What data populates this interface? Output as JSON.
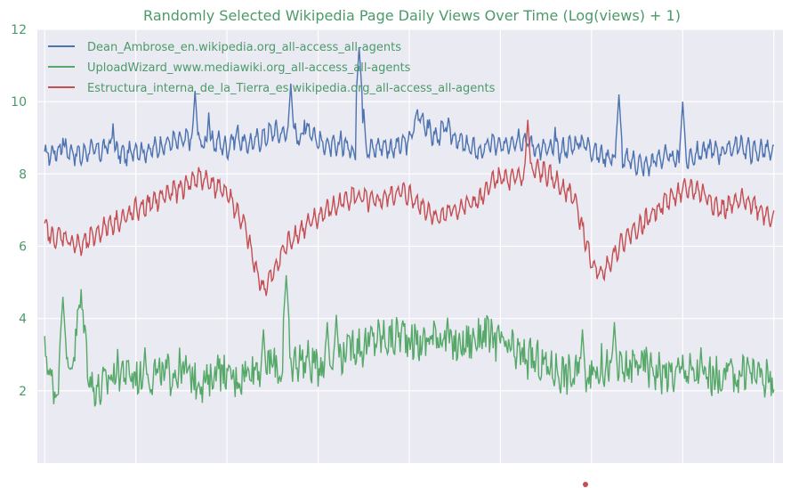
{
  "chart_data": {
    "type": "line",
    "title": "Randomly Selected Wikipedia Page Daily Views Over Time (Log(views) + 1)",
    "xlabel": "",
    "ylabel": "",
    "ylim": [
      0,
      12
    ],
    "xlim": [
      -8,
      810
    ],
    "yticks": [
      "2",
      "4",
      "6",
      "8",
      "10",
      "12"
    ],
    "grid": true,
    "legend_position": "top-left",
    "background": "#eaeaf2",
    "series": [
      {
        "name": "Dean_Ambrose_en.wikipedia.org_all-access_all-agents",
        "color": "#4c72b0",
        "x_step": 10,
        "values": [
          8.5,
          8.6,
          8.7,
          8.6,
          8.5,
          8.7,
          8.6,
          8.8,
          8.6,
          8.5,
          8.7,
          8.6,
          8.7,
          8.8,
          8.9,
          8.9,
          9.0,
          8.9,
          8.8,
          8.9,
          8.7,
          9.1,
          8.8,
          8.9,
          9.0,
          9.2,
          9.1,
          9.2,
          9.0,
          9.3,
          8.9,
          8.8,
          8.7,
          8.8,
          8.6,
          8.6,
          8.7,
          8.8,
          8.7,
          8.8,
          8.9,
          9.7,
          9.2,
          9.0,
          9.3,
          9.0,
          8.8,
          8.7,
          8.6,
          8.9,
          8.7,
          8.9,
          9.0,
          8.9,
          8.7,
          8.7,
          8.6,
          8.7,
          8.8,
          8.9,
          8.7,
          8.5,
          8.5,
          8.3,
          8.4,
          8.3,
          8.2,
          8.4,
          8.5,
          8.4,
          8.3,
          8.5,
          8.6,
          8.7,
          8.6,
          8.7,
          8.8,
          8.7,
          8.6,
          8.7,
          8.5,
          8.4,
          8.5,
          8.4,
          8.3,
          8.2,
          8.4,
          8.3,
          8.2,
          8.3,
          8.4,
          8.5,
          8.4,
          8.3,
          8.2,
          8.1,
          8.0,
          8.1,
          8.0,
          7.9,
          8.0,
          8.1,
          8.2,
          8.1,
          8.0,
          8.1,
          8.0,
          8.3,
          8.5,
          8.2,
          8.1,
          8.0,
          8.1,
          8.3,
          8.1,
          7.9,
          7.9,
          8.0,
          8.1,
          8.2,
          8.3,
          8.4,
          8.1,
          7.9,
          8.0,
          8.0,
          8.1,
          8.5,
          8.6,
          8.0,
          7.8,
          8.0,
          8.0,
          8.1,
          8.0,
          7.8,
          8.1,
          8.1,
          8.1,
          8.1,
          8.1,
          8.1,
          8.1,
          8.1,
          8.1,
          8.1,
          8.1,
          8.1,
          8.1,
          8.1,
          8.1,
          8.1,
          8.1,
          8.1,
          8.1,
          8.1,
          8.1,
          8.1,
          8.1,
          8.1,
          8.1,
          8.1,
          8.1,
          8.1,
          8.1,
          8.1,
          8.1,
          8.1,
          8.1,
          8.1,
          8.1,
          8.1,
          8.1,
          8.1,
          8.1,
          8.1,
          8.1,
          8.1,
          8.1,
          8.1,
          8.1,
          8.1
        ],
        "peaks": [
          [
            20,
            9.0
          ],
          [
            75,
            9.4
          ],
          [
            165,
            10.3
          ],
          [
            180,
            9.7
          ],
          [
            270,
            10.5
          ],
          [
            285,
            9.5
          ],
          [
            325,
            9.2
          ],
          [
            345,
            11.5
          ],
          [
            350,
            9.8
          ],
          [
            420,
            9.5
          ],
          [
            440,
            9.1
          ],
          [
            520,
            8.5
          ],
          [
            560,
            9.3
          ],
          [
            630,
            10.2
          ],
          [
            700,
            10.0
          ]
        ]
      },
      {
        "name": "UploadWizard_www.mediawiki.org_all-access_all-agents",
        "color": "#55a868",
        "x_step": 10,
        "values": [
          3.1,
          2.0,
          2.5,
          2.7,
          4.6,
          2.2,
          2.0,
          2.3,
          2.6,
          2.5,
          2.4,
          2.3,
          2.5,
          2.4,
          2.5,
          2.6,
          2.4,
          2.3,
          2.2,
          2.6,
          2.4,
          2.3,
          2.5,
          2.7,
          2.6,
          2.8,
          2.5,
          2.7,
          2.9,
          2.8,
          2.7,
          3.0,
          2.9,
          3.1,
          3.3,
          3.2,
          3.4,
          3.5,
          3.4,
          3.6,
          3.5,
          3.3,
          3.4,
          3.6,
          3.5,
          3.2,
          3.3,
          3.4,
          3.6,
          3.5,
          3.3,
          3.1,
          3.0,
          2.9,
          2.8,
          2.7,
          2.6,
          2.5,
          2.4,
          2.6,
          2.5,
          2.7,
          2.6,
          2.5,
          2.6,
          2.8,
          2.7,
          2.6,
          2.5,
          2.4,
          2.6,
          2.5,
          2.3,
          2.4,
          2.3,
          2.5,
          2.4,
          2.6,
          2.5,
          2.4,
          2.3,
          2.5,
          2.4,
          2.6,
          2.5,
          2.4
        ],
        "peaks": [
          [
            20,
            4.6
          ],
          [
            55,
            1.5
          ],
          [
            110,
            3.2
          ],
          [
            190,
            3.0
          ],
          [
            240,
            3.7
          ],
          [
            265,
            5.2
          ],
          [
            310,
            3.9
          ],
          [
            320,
            4.1
          ],
          [
            510,
            2.9
          ],
          [
            590,
            3.7
          ],
          [
            625,
            3.9
          ],
          [
            700,
            3.0
          ],
          [
            720,
            3.2
          ]
        ]
      },
      {
        "name": "Estructura_interna_de_la_Tierra_es.wikipedia.org_all-access_all-agents",
        "color": "#c44e52",
        "x_step": 10,
        "values": [
          6.5,
          6.2,
          6.3,
          6.1,
          6.0,
          6.2,
          6.4,
          6.6,
          6.7,
          6.8,
          7.0,
          7.1,
          7.2,
          7.4,
          7.5,
          7.6,
          7.8,
          7.9,
          7.8,
          7.6,
          7.5,
          7.0,
          6.5,
          5.5,
          4.8,
          5.2,
          5.8,
          6.2,
          6.4,
          6.6,
          6.8,
          7.0,
          7.1,
          7.3,
          7.4,
          7.3,
          7.2,
          7.3,
          7.4,
          7.5,
          7.4,
          7.2,
          7.0,
          6.8,
          6.9,
          7.0,
          7.1,
          7.2,
          7.3,
          7.8,
          7.9,
          7.8,
          7.9,
          8.0,
          8.1,
          8.0,
          7.8,
          7.6,
          7.4,
          6.5,
          5.5,
          5.2,
          5.6,
          6.0,
          6.3,
          6.5,
          6.7,
          7.0,
          7.2,
          7.4,
          7.5,
          7.6,
          7.5,
          7.3,
          7.0,
          7.1,
          7.2,
          7.3,
          7.1,
          6.9,
          6.8,
          6.6,
          6.5,
          6.8,
          7.1,
          7.4,
          7.6,
          7.5
        ],
        "peaks": [
          [
            530,
            9.5
          ],
          [
            810,
            8.5
          ]
        ]
      }
    ]
  }
}
